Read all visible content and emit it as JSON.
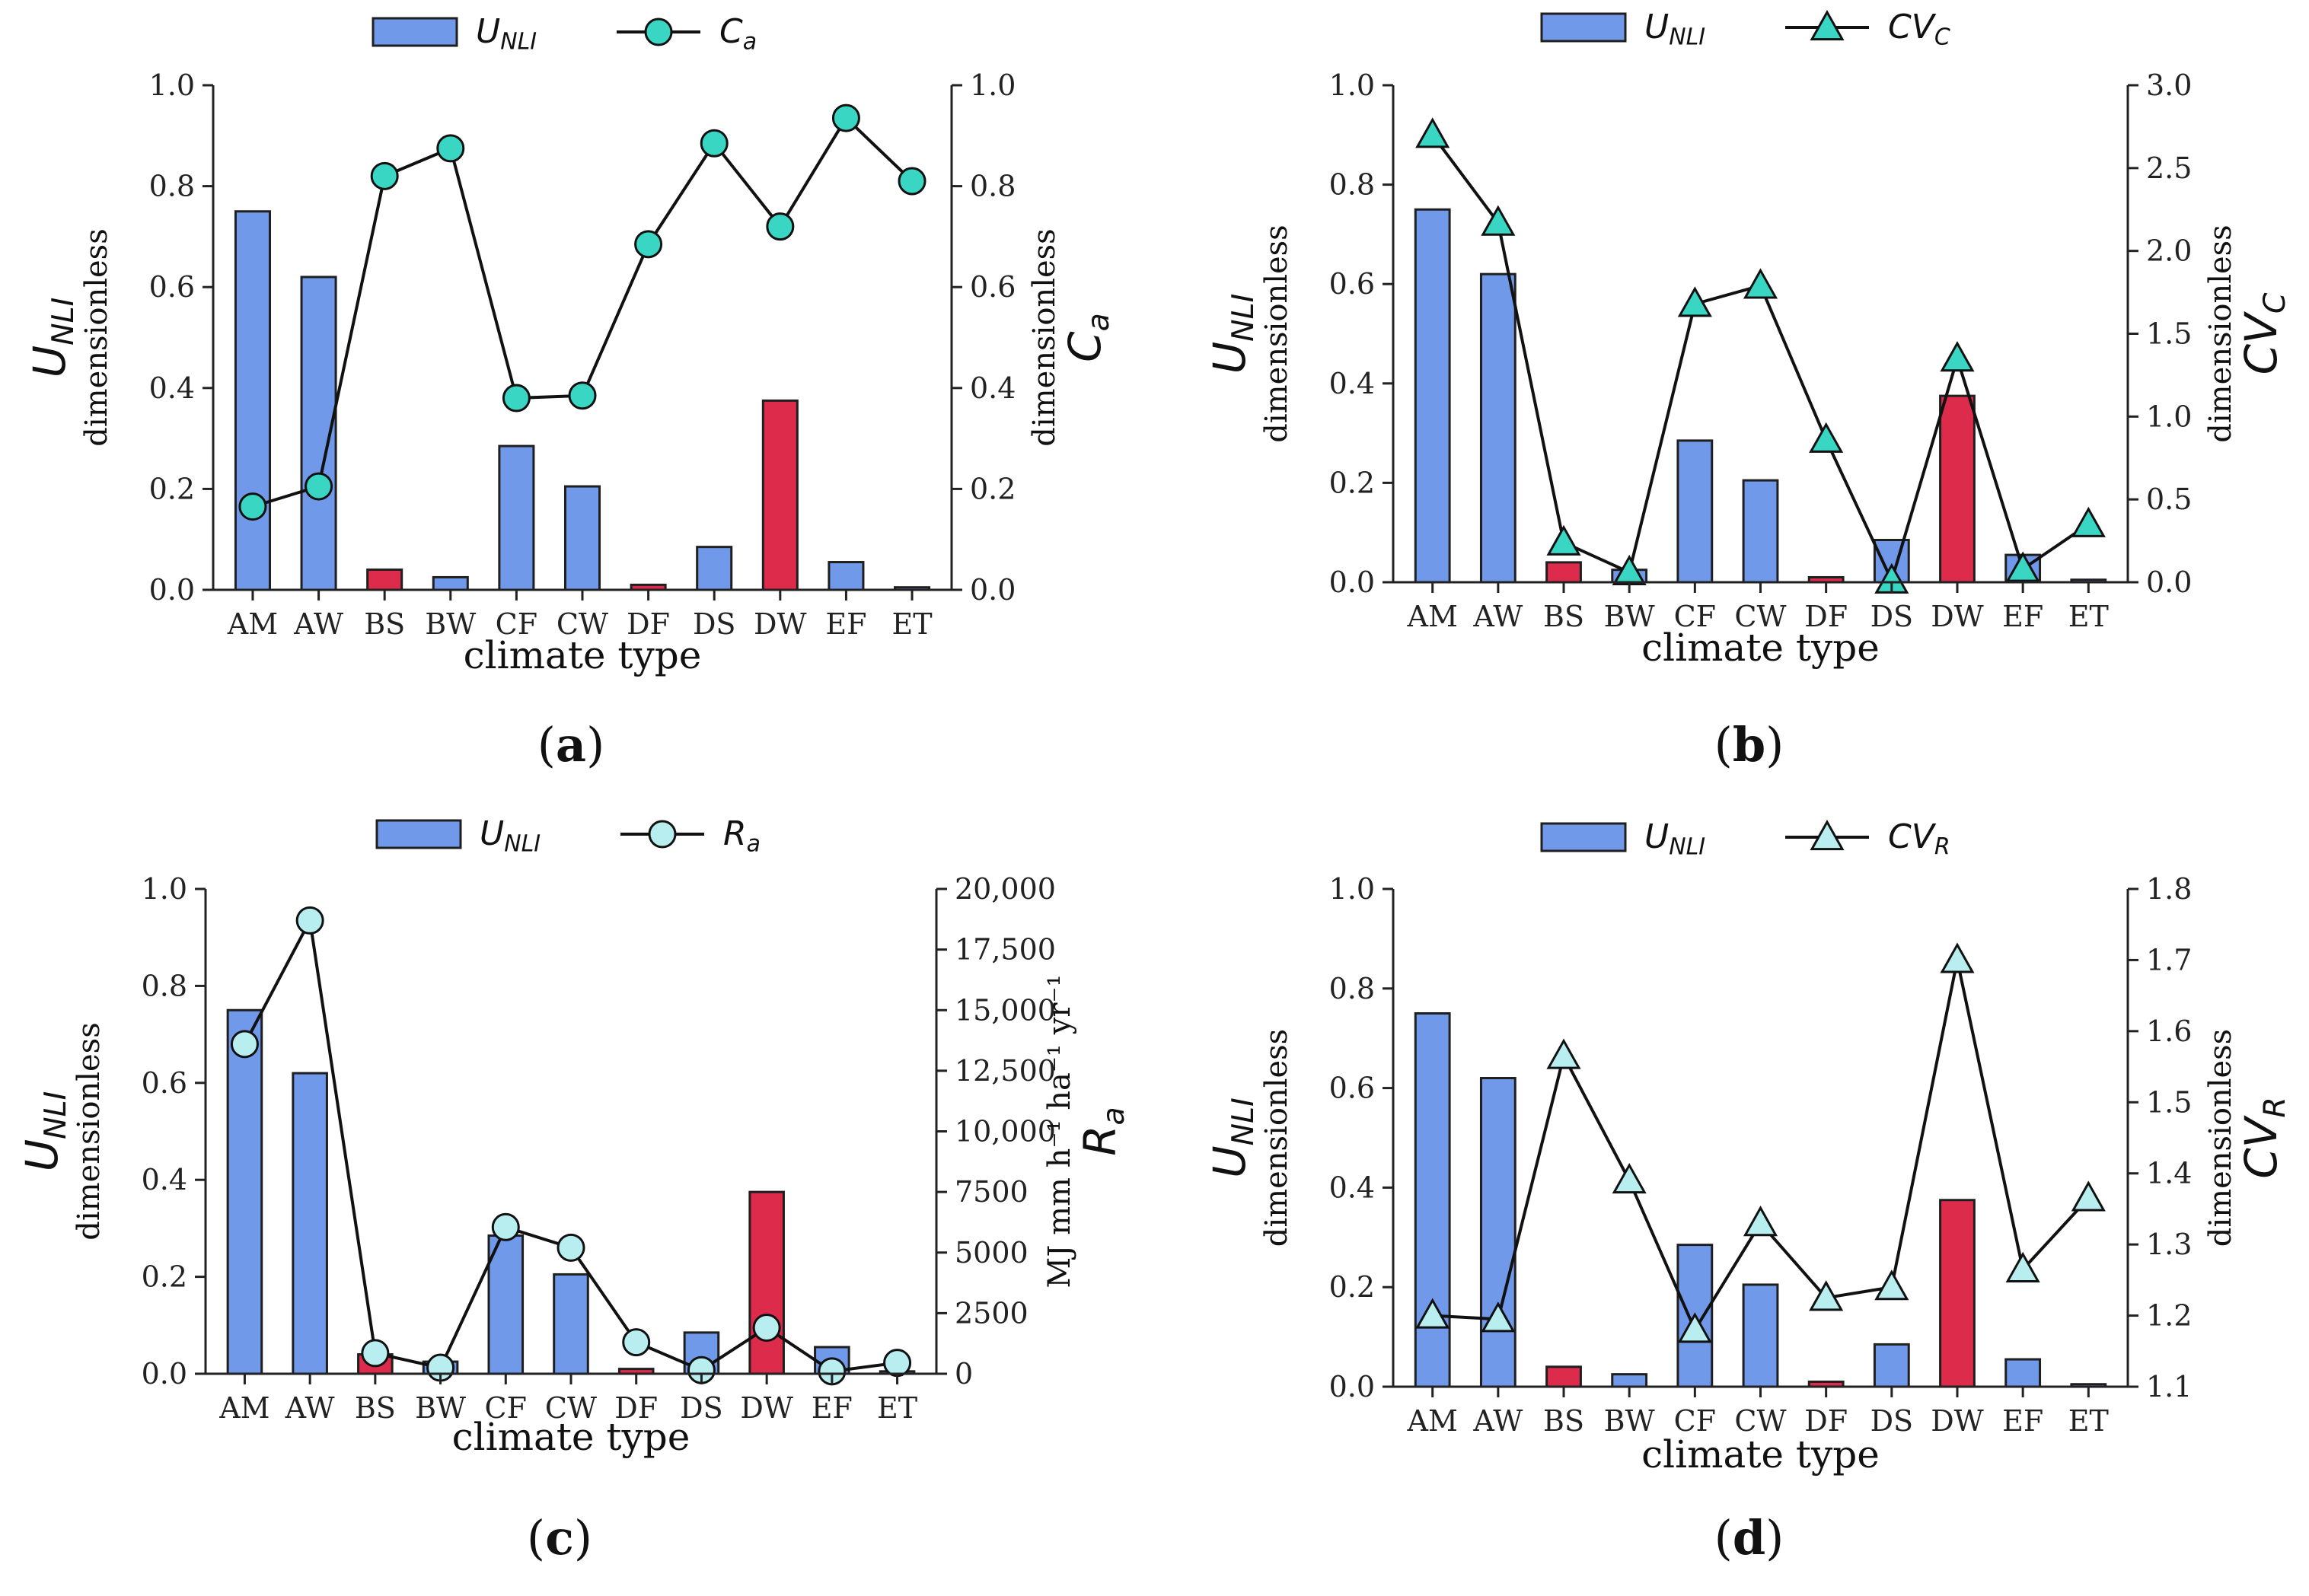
{
  "colors": {
    "bar_blue": "#7099e9",
    "bar_red": "#dc2b4b",
    "teal": "#39d6c4",
    "light_teal": "#b8eef0"
  },
  "chart_data": [
    {
      "panel": "(a)",
      "panel_letter": "a",
      "type": "bar",
      "categories": [
        "AM",
        "AW",
        "BS",
        "BW",
        "CF",
        "CW",
        "DF",
        "DS",
        "DW",
        "EF",
        "ET"
      ],
      "xlabel": "climate type",
      "ylabel": "U_NLI",
      "ylabel_main": "U",
      "ylabel_sub": "NLI",
      "ylabel_dim": "dimensionless",
      "ylim": [
        0,
        1.0
      ],
      "yticks": [
        "0.0",
        "0.2",
        "0.4",
        "0.6",
        "0.8",
        "1.0"
      ],
      "series": [
        {
          "name": "U_NLI",
          "legend_main": "U",
          "legend_sub": "NLI",
          "kind": "bar",
          "axis": "left",
          "values": [
            0.75,
            0.62,
            0.04,
            0.025,
            0.285,
            0.205,
            0.01,
            0.085,
            0.375,
            0.055,
            0.005
          ],
          "colors": [
            "blue",
            "blue",
            "red",
            "blue",
            "blue",
            "blue",
            "red",
            "blue",
            "red",
            "blue",
            "blue"
          ]
        },
        {
          "name": "C_a",
          "legend_main": "C",
          "legend_sub": "a",
          "kind": "line",
          "marker": "circle",
          "marker_color": "teal",
          "axis": "right",
          "values": [
            0.165,
            0.205,
            0.82,
            0.875,
            0.38,
            0.385,
            0.685,
            0.885,
            0.72,
            0.935,
            0.81
          ]
        }
      ],
      "y2label": "C_a",
      "y2label_main": "C",
      "y2label_sub": "a",
      "y2label_dim": "dimensionless",
      "y2lim": [
        0,
        1.0
      ],
      "y2ticks": [
        "0.0",
        "0.2",
        "0.4",
        "0.6",
        "0.8",
        "1.0"
      ]
    },
    {
      "panel": "(b)",
      "panel_letter": "b",
      "type": "bar",
      "categories": [
        "AM",
        "AW",
        "BS",
        "BW",
        "CF",
        "CW",
        "DF",
        "DS",
        "DW",
        "EF",
        "ET"
      ],
      "xlabel": "climate type",
      "ylabel": "U_NLI",
      "ylabel_main": "U",
      "ylabel_sub": "NLI",
      "ylabel_dim": "dimensionless",
      "ylim": [
        0,
        1.0
      ],
      "yticks": [
        "0.0",
        "0.2",
        "0.4",
        "0.6",
        "0.8",
        "1.0"
      ],
      "series": [
        {
          "name": "U_NLI",
          "legend_main": "U",
          "legend_sub": "NLI",
          "kind": "bar",
          "axis": "left",
          "values": [
            0.75,
            0.62,
            0.04,
            0.025,
            0.285,
            0.205,
            0.01,
            0.085,
            0.375,
            0.055,
            0.005
          ],
          "colors": [
            "blue",
            "blue",
            "red",
            "blue",
            "blue",
            "blue",
            "red",
            "blue",
            "red",
            "blue",
            "blue"
          ]
        },
        {
          "name": "CV_C",
          "legend_main": "CV",
          "legend_sub": "C",
          "kind": "line",
          "marker": "triangle",
          "marker_color": "teal",
          "axis": "right",
          "values": [
            2.7,
            2.17,
            0.24,
            0.06,
            1.68,
            1.79,
            0.86,
            0.01,
            1.35,
            0.08,
            0.35
          ]
        }
      ],
      "y2label": "CV_C",
      "y2label_main": "CV",
      "y2label_sub": "C",
      "y2label_dim": "dimensionless",
      "y2lim": [
        0,
        3.0
      ],
      "y2ticks": [
        "0.0",
        "0.5",
        "1.0",
        "1.5",
        "2.0",
        "2.5",
        "3.0"
      ]
    },
    {
      "panel": "(c)",
      "panel_letter": "c",
      "type": "bar",
      "categories": [
        "AM",
        "AW",
        "BS",
        "BW",
        "CF",
        "CW",
        "DF",
        "DS",
        "DW",
        "EF",
        "ET"
      ],
      "xlabel": "climate type",
      "ylabel": "U_NLI",
      "ylabel_main": "U",
      "ylabel_sub": "NLI",
      "ylabel_dim": "dimensionless",
      "ylim": [
        0,
        1.0
      ],
      "yticks": [
        "0.0",
        "0.2",
        "0.4",
        "0.6",
        "0.8",
        "1.0"
      ],
      "series": [
        {
          "name": "U_NLI",
          "legend_main": "U",
          "legend_sub": "NLI",
          "kind": "bar",
          "axis": "left",
          "values": [
            0.75,
            0.62,
            0.04,
            0.025,
            0.285,
            0.205,
            0.01,
            0.085,
            0.375,
            0.055,
            0.005
          ],
          "colors": [
            "blue",
            "blue",
            "red",
            "blue",
            "blue",
            "blue",
            "red",
            "blue",
            "red",
            "blue",
            "blue"
          ]
        },
        {
          "name": "R_a",
          "legend_main": "R",
          "legend_sub": "a",
          "kind": "line",
          "marker": "circle",
          "marker_color": "light_teal",
          "axis": "right",
          "values": [
            13600,
            18700,
            850,
            250,
            6050,
            5200,
            1300,
            150,
            1900,
            100,
            450
          ]
        }
      ],
      "y2label": "R_a",
      "y2label_main": "R",
      "y2label_sub": "a",
      "y2label_units": "MJ mm h⁻¹ ha⁻¹ yr⁻¹",
      "y2lim": [
        0,
        20000
      ],
      "y2ticks": [
        "0",
        "2500",
        "5000",
        "7500",
        "10,000",
        "12,500",
        "15,000",
        "17,500",
        "20,000"
      ]
    },
    {
      "panel": "(d)",
      "panel_letter": "d",
      "type": "bar",
      "categories": [
        "AM",
        "AW",
        "BS",
        "BW",
        "CF",
        "CW",
        "DF",
        "DS",
        "DW",
        "EF",
        "ET"
      ],
      "xlabel": "climate type",
      "ylabel": "U_NLI",
      "ylabel_main": "U",
      "ylabel_sub": "NLI",
      "ylabel_dim": "dimensionless",
      "ylim": [
        0,
        1.0
      ],
      "yticks": [
        "0.0",
        "0.2",
        "0.4",
        "0.6",
        "0.8",
        "1.0"
      ],
      "series": [
        {
          "name": "U_NLI",
          "legend_main": "U",
          "legend_sub": "NLI",
          "kind": "bar",
          "axis": "left",
          "values": [
            0.75,
            0.62,
            0.04,
            0.025,
            0.285,
            0.205,
            0.01,
            0.085,
            0.375,
            0.055,
            0.005
          ],
          "colors": [
            "blue",
            "blue",
            "red",
            "blue",
            "blue",
            "blue",
            "red",
            "blue",
            "red",
            "blue",
            "blue"
          ]
        },
        {
          "name": "CV_R",
          "legend_main": "CV",
          "legend_sub": "R",
          "kind": "line",
          "marker": "triangle",
          "marker_color": "light_teal",
          "axis": "right",
          "values": [
            1.2,
            1.195,
            1.565,
            1.39,
            1.18,
            1.33,
            1.225,
            1.24,
            1.7,
            1.265,
            1.365
          ]
        }
      ],
      "y2label": "CV_R",
      "y2label_main": "CV",
      "y2label_sub": "R",
      "y2label_dim": "dimensionless",
      "y2lim": [
        1.1,
        1.8
      ],
      "y2ticks": [
        "1.1",
        "1.2",
        "1.3",
        "1.4",
        "1.5",
        "1.6",
        "1.7",
        "1.8"
      ]
    }
  ]
}
